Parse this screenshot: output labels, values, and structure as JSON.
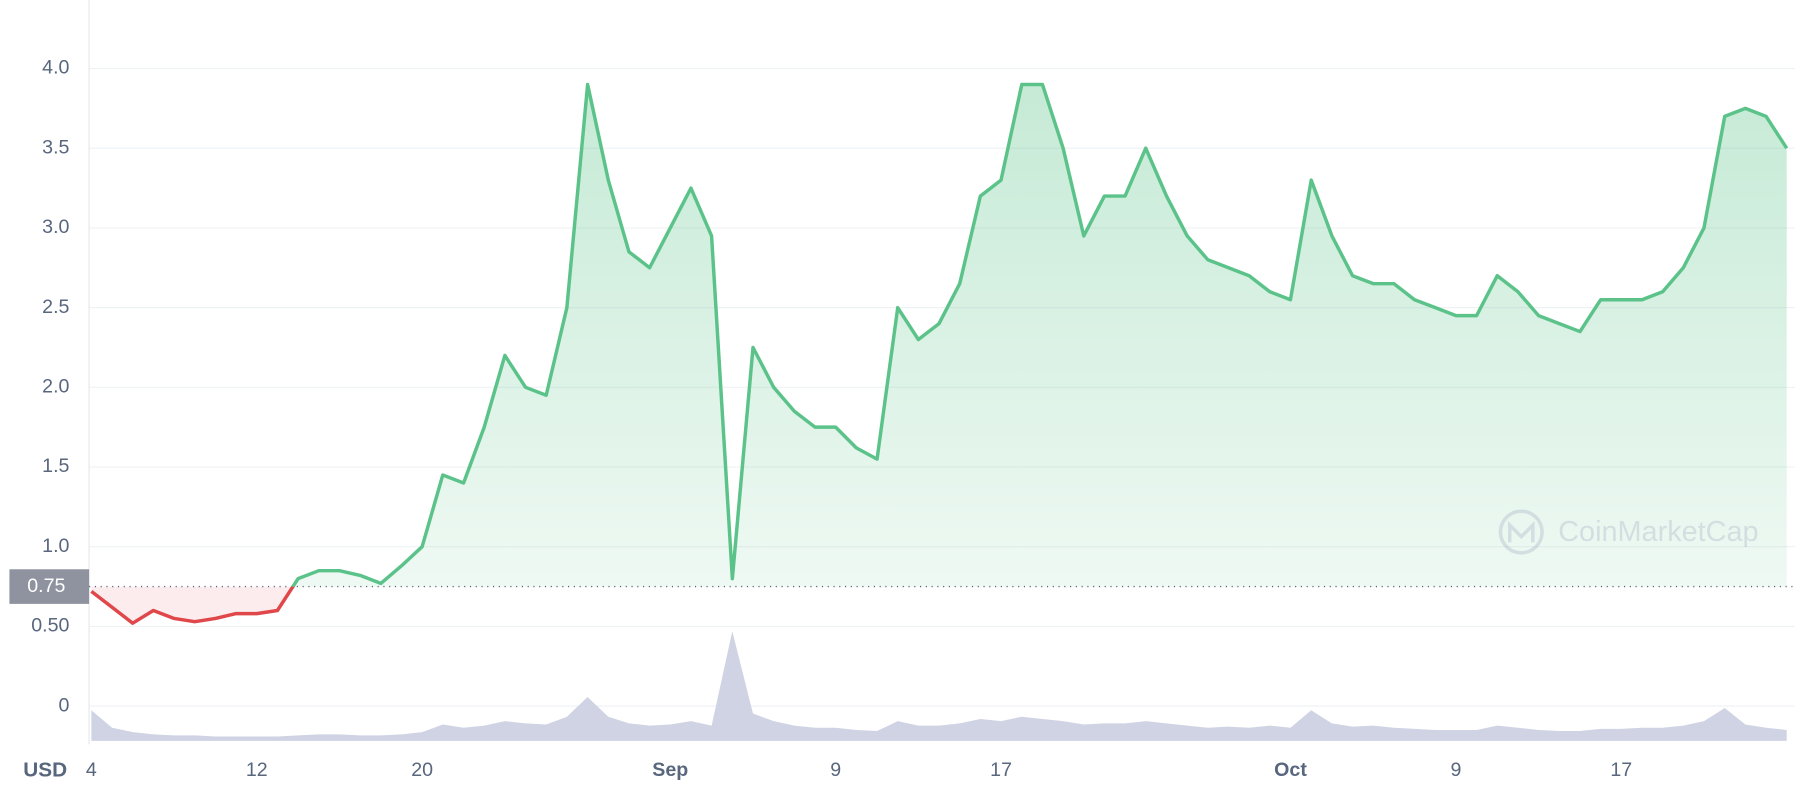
{
  "chart_data": {
    "type": "line",
    "axis_label": "USD",
    "watermark": "CoinMarketCap",
    "categories": [
      "4",
      null,
      null,
      null,
      null,
      null,
      null,
      null,
      "12",
      null,
      null,
      null,
      null,
      null,
      null,
      null,
      "20",
      null,
      null,
      null,
      null,
      null,
      null,
      null,
      null,
      null,
      null,
      null,
      "Sep",
      null,
      null,
      null,
      null,
      null,
      null,
      null,
      "9",
      null,
      null,
      null,
      null,
      null,
      null,
      null,
      "17",
      null,
      null,
      null,
      null,
      null,
      null,
      null,
      null,
      null,
      null,
      null,
      null,
      null,
      "Oct",
      null,
      null,
      null,
      null,
      null,
      null,
      null,
      "9",
      null,
      null,
      null,
      null,
      null,
      null,
      null,
      "17",
      null,
      null,
      null,
      null,
      null,
      null,
      null,
      null
    ],
    "series": [
      {
        "color_up": "#5bc389",
        "color_down": "#e0474a",
        "values": [
          0.72,
          0.62,
          0.52,
          0.6,
          0.55,
          0.53,
          0.55,
          0.58,
          0.58,
          0.6,
          0.8,
          0.85,
          0.85,
          0.82,
          0.77,
          0.88,
          1.0,
          1.45,
          1.4,
          1.75,
          2.2,
          2.0,
          1.95,
          2.5,
          3.9,
          3.3,
          2.85,
          2.75,
          3.0,
          3.25,
          2.95,
          0.8,
          2.25,
          2.0,
          1.85,
          1.75,
          1.75,
          1.62,
          1.55,
          2.5,
          2.3,
          2.4,
          2.65,
          3.2,
          3.3,
          3.9,
          3.9,
          3.5,
          2.95,
          3.2,
          3.2,
          3.5,
          3.2,
          2.95,
          2.8,
          2.75,
          2.7,
          2.6,
          2.55,
          3.3,
          2.95,
          2.7,
          2.65,
          2.65,
          2.55,
          2.5,
          2.45,
          2.45,
          2.7,
          2.6,
          2.45,
          2.4,
          2.35,
          2.55,
          2.55,
          2.55,
          2.6,
          2.75,
          3.0,
          3.7,
          3.75,
          3.7,
          3.5
        ]
      }
    ],
    "volume": {
      "color": "#cfd3e3",
      "values": [
        28,
        12,
        8,
        6,
        5,
        5,
        4,
        4,
        4,
        4,
        5,
        6,
        6,
        5,
        5,
        6,
        8,
        15,
        12,
        14,
        18,
        16,
        15,
        22,
        40,
        22,
        16,
        14,
        15,
        18,
        14,
        100,
        25,
        18,
        14,
        12,
        12,
        10,
        9,
        18,
        14,
        14,
        16,
        20,
        18,
        22,
        20,
        18,
        15,
        16,
        16,
        18,
        16,
        14,
        12,
        13,
        12,
        14,
        12,
        28,
        16,
        13,
        14,
        12,
        11,
        10,
        10,
        10,
        14,
        12,
        10,
        9,
        9,
        11,
        11,
        12,
        12,
        14,
        18,
        30,
        15,
        12,
        10
      ]
    },
    "reference": {
      "value": 0.75,
      "label": "0.75"
    },
    "ylim": [
      -0.24,
      4.43
    ],
    "yticks": [
      0,
      {
        "value": 0.5,
        "label": "0.50"
      },
      {
        "value": 1,
        "label": "1.0"
      },
      1.5,
      {
        "value": 2,
        "label": "2.0"
      },
      2.5,
      {
        "value": 3,
        "label": "3.0"
      },
      3.5,
      {
        "value": 4,
        "label": "4.0"
      }
    ],
    "grid": true
  }
}
